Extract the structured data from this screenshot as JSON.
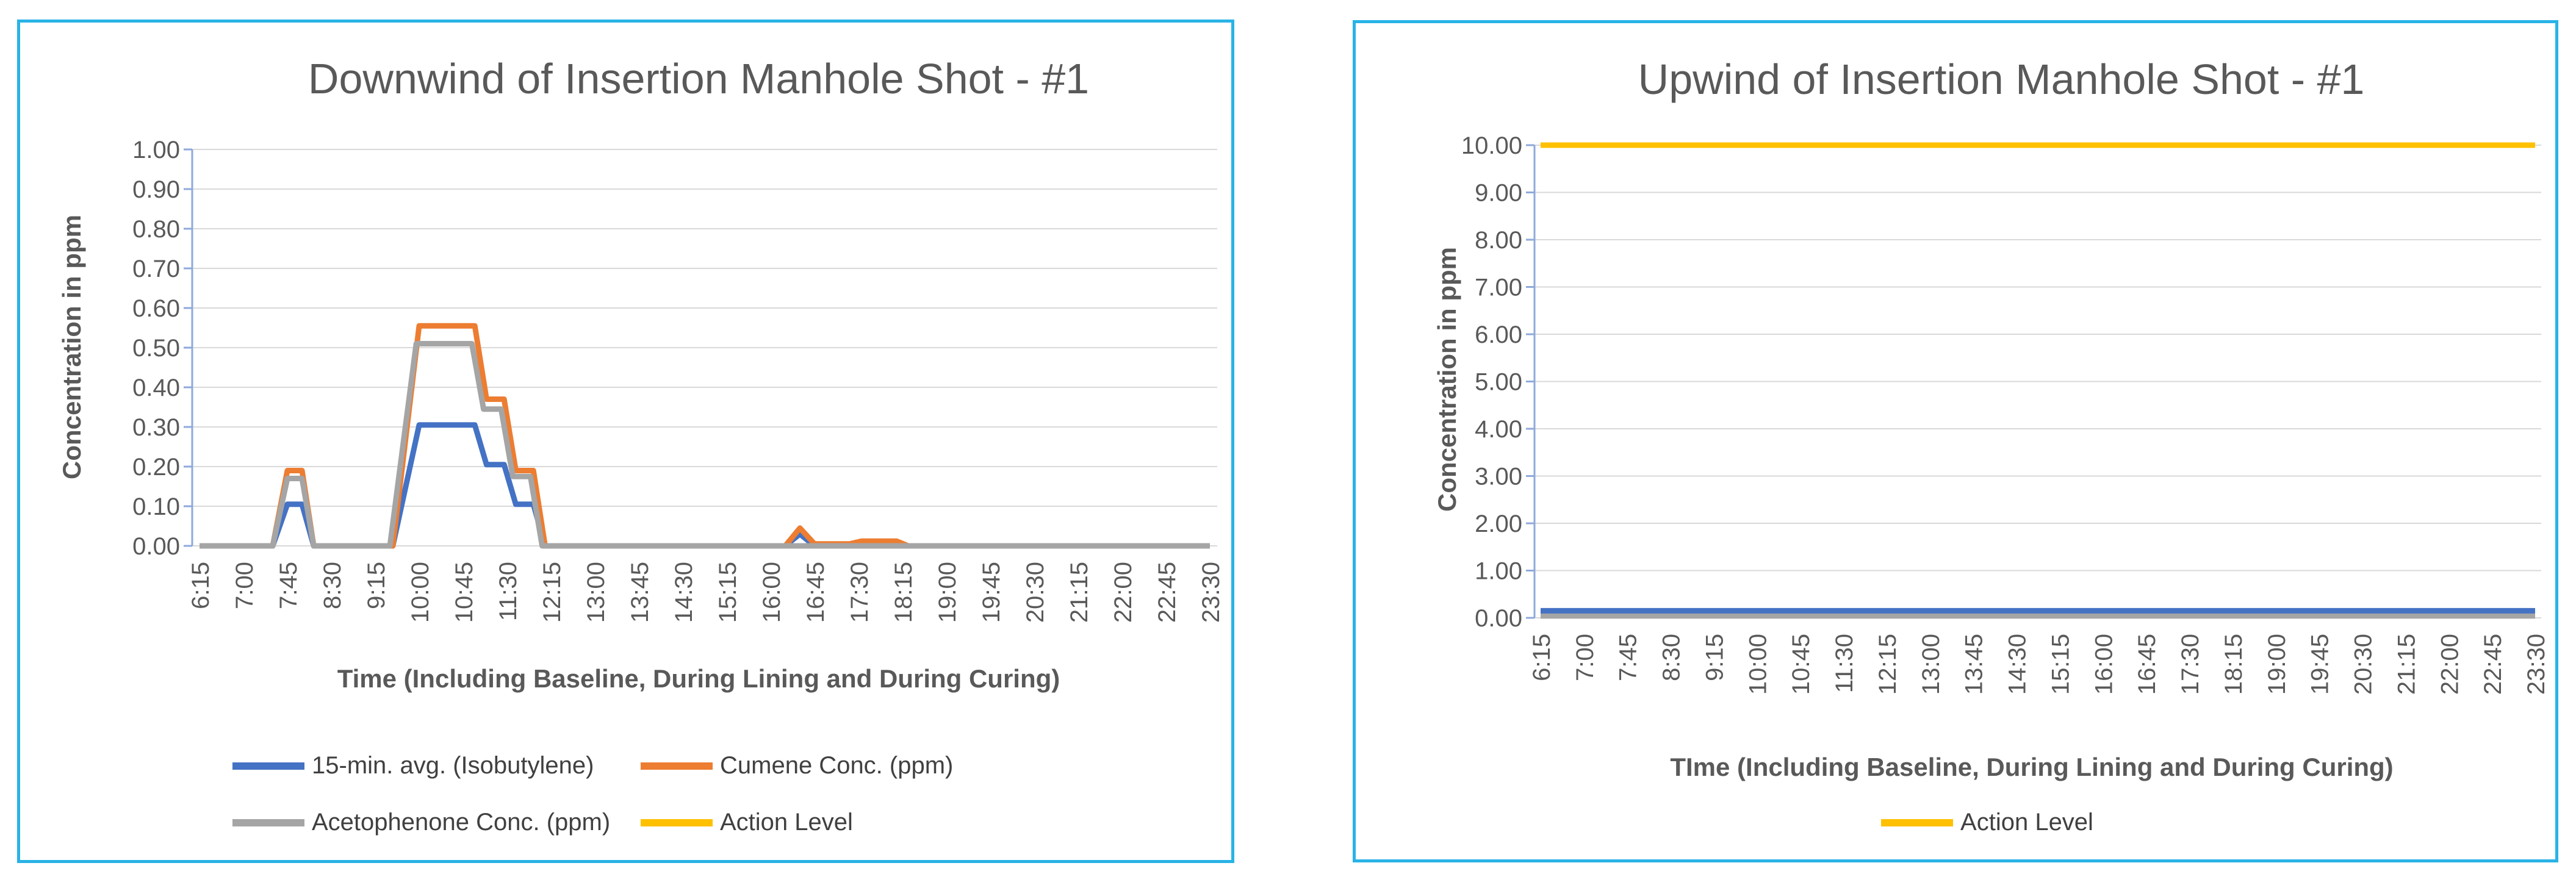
{
  "page": {
    "background_color": "#ffffff",
    "panel_border_color": "#29b3e6",
    "text_color": "#595959",
    "gridline_color": "#d9d9d9",
    "axis_color": "#8eaadb"
  },
  "chart_data": [
    {
      "type": "line",
      "title": "Downwind of Insertion Manhole Shot - #1",
      "xlabel": "Time (Including Baseline, During Lining and During Curing)",
      "ylabel": "Concentration in ppm",
      "ylim": [
        0,
        1.0
      ],
      "y_step": 0.1,
      "y_tick_decimals": 2,
      "grid": "horizontal",
      "legend_position": "bottom",
      "x_start_hour": 6.25,
      "x_end_hour": 23.5,
      "x_tick_labels": [
        "6:15",
        "7:00",
        "7:45",
        "8:30",
        "9:15",
        "10:00",
        "10:45",
        "11:30",
        "12:15",
        "13:00",
        "13:45",
        "14:30",
        "15:15",
        "16:00",
        "16:45",
        "17:30",
        "18:15",
        "19:00",
        "19:45",
        "20:30",
        "21:15",
        "22:00",
        "22:45",
        "23:30"
      ],
      "series": [
        {
          "name": "15-min. avg. (Isobutylene)",
          "color": "#4472C4",
          "in_legend": true,
          "points": [
            [
              6.25,
              0
            ],
            [
              7.5,
              0
            ],
            [
              7.75,
              0.105
            ],
            [
              8.0,
              0.105
            ],
            [
              8.2,
              0
            ],
            [
              9.55,
              0
            ],
            [
              10.0,
              0.305
            ],
            [
              10.95,
              0.305
            ],
            [
              11.15,
              0.205
            ],
            [
              11.45,
              0.205
            ],
            [
              11.65,
              0.105
            ],
            [
              11.95,
              0.105
            ],
            [
              12.15,
              0
            ],
            [
              16.25,
              0
            ],
            [
              16.5,
              0.03
            ],
            [
              16.75,
              0
            ],
            [
              23.5,
              0
            ]
          ]
        },
        {
          "name": "Cumene Conc. (ppm)",
          "color": "#ED7D31",
          "in_legend": true,
          "points": [
            [
              6.25,
              0
            ],
            [
              7.5,
              0
            ],
            [
              7.75,
              0.19
            ],
            [
              8.0,
              0.19
            ],
            [
              8.2,
              0
            ],
            [
              9.55,
              0
            ],
            [
              10.0,
              0.555
            ],
            [
              10.95,
              0.555
            ],
            [
              11.15,
              0.37
            ],
            [
              11.45,
              0.37
            ],
            [
              11.65,
              0.19
            ],
            [
              11.95,
              0.19
            ],
            [
              12.15,
              0
            ],
            [
              16.25,
              0
            ],
            [
              16.5,
              0.045
            ],
            [
              16.75,
              0.005
            ],
            [
              17.35,
              0.005
            ],
            [
              17.55,
              0.012
            ],
            [
              18.15,
              0.012
            ],
            [
              18.35,
              0
            ],
            [
              23.5,
              0
            ]
          ]
        },
        {
          "name": "Acetophenone Conc. (ppm)",
          "color": "#A5A5A5",
          "in_legend": true,
          "points": [
            [
              6.25,
              0
            ],
            [
              7.5,
              0
            ],
            [
              7.75,
              0.17
            ],
            [
              8.0,
              0.17
            ],
            [
              8.2,
              0
            ],
            [
              9.5,
              0
            ],
            [
              9.95,
              0.51
            ],
            [
              10.9,
              0.51
            ],
            [
              11.1,
              0.345
            ],
            [
              11.4,
              0.345
            ],
            [
              11.6,
              0.175
            ],
            [
              11.9,
              0.175
            ],
            [
              12.1,
              0
            ],
            [
              23.5,
              0
            ]
          ]
        },
        {
          "name": "Action Level",
          "color": "#FFC000",
          "in_legend": true,
          "action_level_ppm": 10,
          "points": [
            [
              6.25,
              10
            ],
            [
              23.5,
              10
            ]
          ]
        }
      ]
    },
    {
      "type": "line",
      "title": "Upwind of Insertion Manhole Shot - #1",
      "xlabel": "TIme (Including Baseline, During Lining and During Curing)",
      "ylabel": "Concentration in ppm",
      "ylim": [
        0,
        10.0
      ],
      "y_step": 1.0,
      "y_tick_decimals": 2,
      "grid": "horizontal",
      "legend_position": "bottom",
      "x_start_hour": 6.25,
      "x_end_hour": 23.5,
      "x_tick_labels": [
        "6:15",
        "7:00",
        "7:45",
        "8:30",
        "9:15",
        "10:00",
        "10:45",
        "11:30",
        "12:15",
        "13:00",
        "13:45",
        "14:30",
        "15:15",
        "16:00",
        "16:45",
        "17:30",
        "18:15",
        "19:00",
        "19:45",
        "20:30",
        "21:15",
        "22:00",
        "22:45",
        "23:30"
      ],
      "series": [
        {
          "name": "Cumene Conc. (ppm)",
          "color": "#ED7D31",
          "in_legend": false,
          "points": [
            [
              6.25,
              0.05
            ],
            [
              15.9,
              0.05
            ],
            [
              16.1,
              0.1
            ],
            [
              16.4,
              0.14
            ],
            [
              16.7,
              0.1
            ],
            [
              17.0,
              0.13
            ],
            [
              17.3,
              0.1
            ],
            [
              17.6,
              0.14
            ],
            [
              17.9,
              0.08
            ],
            [
              18.2,
              0.05
            ],
            [
              23.5,
              0.05
            ]
          ]
        },
        {
          "name": "Acetophenone Conc. (ppm)",
          "color": "#A5A5A5",
          "in_legend": false,
          "points": [
            [
              6.25,
              0.04
            ],
            [
              23.5,
              0.04
            ]
          ]
        },
        {
          "name": "15-min. avg. (Isobutylene)",
          "color": "#4472C4",
          "in_legend": false,
          "points": [
            [
              6.25,
              0.15
            ],
            [
              23.5,
              0.15
            ]
          ]
        },
        {
          "name": "Action Level",
          "color": "#FFC000",
          "in_legend": true,
          "action_level_ppm": 10,
          "points": [
            [
              6.25,
              10
            ],
            [
              23.5,
              10
            ]
          ]
        }
      ]
    }
  ]
}
